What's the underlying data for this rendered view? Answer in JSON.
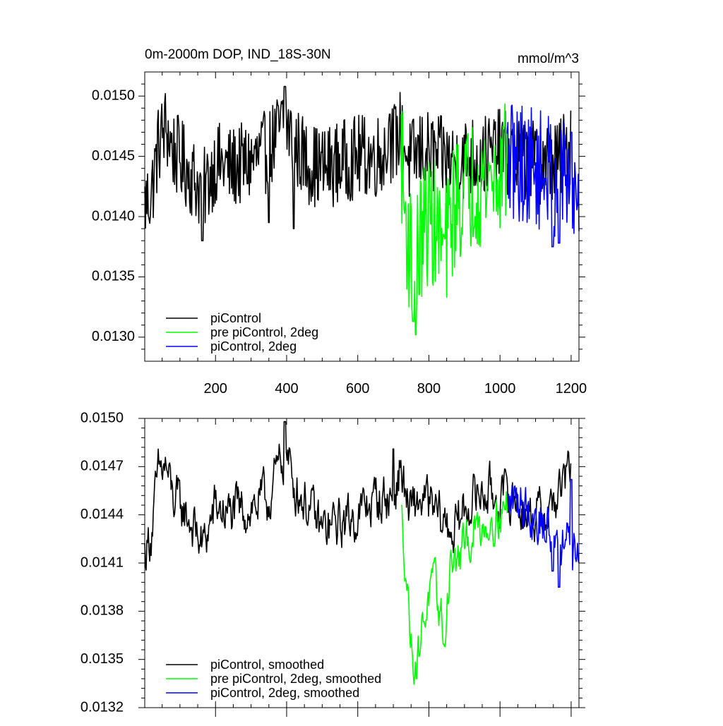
{
  "chart_data": [
    {
      "type": "line",
      "title": "0m-2000m DOP, IND_18S-30N",
      "units": "mmol/m^3",
      "xlim": [
        1,
        1222
      ],
      "ylim": [
        0.0128,
        0.0152
      ],
      "x_ticks": [
        200,
        400,
        600,
        800,
        1000,
        1200
      ],
      "x_tick_labels": [
        "200",
        "400",
        "600",
        "800",
        "1000",
        "1200"
      ],
      "y_ticks": [
        0.013,
        0.0135,
        0.014,
        0.0145,
        0.015
      ],
      "y_tick_labels": [
        "0.0130",
        "0.0135",
        "0.0140",
        "0.0145",
        "0.0150"
      ],
      "legend_position": "bottom-left",
      "series": [
        {
          "name": "piControl",
          "color": "#000000",
          "x_range": [
            1,
            1200
          ],
          "anchor_x": [
            1,
            20,
            40,
            60,
            80,
            120,
            165,
            200,
            240,
            300,
            350,
            395,
            420,
            460,
            500,
            550,
            600,
            650,
            700,
            720,
            745,
            780,
            820,
            870,
            920,
            960,
            1000,
            1040,
            1080,
            1120,
            1160,
            1200
          ],
          "anchor_y": [
            0.0141,
            0.0142,
            0.0146,
            0.01475,
            0.01455,
            0.0144,
            0.0142,
            0.01445,
            0.0144,
            0.01445,
            0.01455,
            0.0148,
            0.0146,
            0.01445,
            0.0144,
            0.01445,
            0.0145,
            0.0145,
            0.0146,
            0.0147,
            0.01445,
            0.01455,
            0.0145,
            0.01445,
            0.0145,
            0.0145,
            0.01455,
            0.0145,
            0.01445,
            0.01445,
            0.01445,
            0.0146
          ],
          "noise": 0.00035,
          "spikes": [
            [
              163,
              0.0138
            ],
            [
              395,
              0.01508
            ],
            [
              350,
              0.01395
            ],
            [
              420,
              0.0139
            ],
            [
              690,
              0.01485
            ],
            [
              1200,
              0.01488
            ]
          ]
        },
        {
          "name": "pre piControl, 2deg",
          "color": "#00ff00",
          "x_range": [
            722,
            1020
          ],
          "anchor_x": [
            722,
            730,
            745,
            760,
            780,
            800,
            820,
            845,
            870,
            900,
            930,
            960,
            990,
            1020
          ],
          "anchor_y": [
            0.0146,
            0.0141,
            0.01375,
            0.01355,
            0.01385,
            0.014,
            0.0139,
            0.0137,
            0.0141,
            0.0142,
            0.0143,
            0.0143,
            0.01435,
            0.0144
          ],
          "noise": 0.00055,
          "spikes": [
            [
              755,
              0.01313
            ],
            [
              763,
              0.01302
            ],
            [
              1010,
              0.01475
            ]
          ]
        },
        {
          "name": "piControl, 2deg",
          "color": "#0000ff",
          "x_range": [
            1020,
            1222
          ],
          "anchor_x": [
            1020,
            1060,
            1100,
            1140,
            1180,
            1222
          ],
          "anchor_y": [
            0.01445,
            0.01445,
            0.0144,
            0.01435,
            0.0143,
            0.01425
          ],
          "noise": 0.0005,
          "spikes": [
            [
              1148,
              0.01375
            ],
            [
              1166,
              0.01378
            ],
            [
              1200,
              0.0147
            ]
          ]
        }
      ]
    },
    {
      "type": "line",
      "title": "",
      "xlim": [
        1,
        1222
      ],
      "ylim": [
        0.0132,
        0.015
      ],
      "x_ticks": [
        200,
        400,
        600,
        800,
        1000,
        1200
      ],
      "y_ticks": [
        0.0132,
        0.0135,
        0.0138,
        0.0141,
        0.0144,
        0.0147,
        0.015
      ],
      "y_tick_labels": [
        "0.0132",
        "0.0135",
        "0.0138",
        "0.0141",
        "0.0144",
        "0.0147",
        "0.0150"
      ],
      "legend_position": "bottom-left",
      "series": [
        {
          "name": "piControl, smoothed",
          "color": "#000000",
          "x_range": [
            1,
            1200
          ],
          "anchor_x": [
            1,
            20,
            40,
            60,
            80,
            120,
            165,
            200,
            240,
            300,
            350,
            395,
            420,
            460,
            500,
            550,
            600,
            650,
            700,
            720,
            745,
            780,
            820,
            870,
            920,
            960,
            1000,
            1040,
            1080,
            1120,
            1160,
            1200
          ],
          "anchor_y": [
            0.01416,
            0.0143,
            0.01465,
            0.0147,
            0.0145,
            0.0144,
            0.0142,
            0.01445,
            0.0144,
            0.01445,
            0.0145,
            0.0148,
            0.0146,
            0.01445,
            0.0143,
            0.01435,
            0.0144,
            0.0145,
            0.0145,
            0.0147,
            0.0144,
            0.0145,
            0.0144,
            0.0143,
            0.0145,
            0.01455,
            0.0145,
            0.0145,
            0.0144,
            0.0144,
            0.0145,
            0.0147
          ],
          "noise": 0.00028,
          "spikes": [
            [
              395,
              0.01498
            ],
            [
              700,
              0.01481
            ],
            [
              1200,
              0.01472
            ]
          ]
        },
        {
          "name": "pre piControl, 2deg, smoothed",
          "color": "#00ff00",
          "x_range": [
            722,
            1020
          ],
          "anchor_x": [
            722,
            735,
            750,
            765,
            780,
            800,
            815,
            830,
            845,
            860,
            880,
            900,
            930,
            960,
            990,
            1020
          ],
          "anchor_y": [
            0.0144,
            0.0141,
            0.0136,
            0.01345,
            0.0137,
            0.0139,
            0.01395,
            0.0138,
            0.01365,
            0.0141,
            0.0141,
            0.0142,
            0.0143,
            0.01435,
            0.0144,
            0.01445
          ],
          "noise": 0.00025,
          "spikes": [
            [
              765,
              0.01338
            ],
            [
              845,
              0.01358
            ]
          ]
        },
        {
          "name": "piControl, 2deg, smoothed",
          "color": "#0000ff",
          "x_range": [
            1020,
            1222
          ],
          "anchor_x": [
            1020,
            1060,
            1100,
            1140,
            1180,
            1222
          ],
          "anchor_y": [
            0.01445,
            0.0145,
            0.0144,
            0.0143,
            0.0142,
            0.0142
          ],
          "noise": 0.0003,
          "spikes": [
            [
              1148,
              0.01405
            ],
            [
              1166,
              0.01395
            ],
            [
              1200,
              0.01462
            ]
          ]
        }
      ]
    }
  ]
}
